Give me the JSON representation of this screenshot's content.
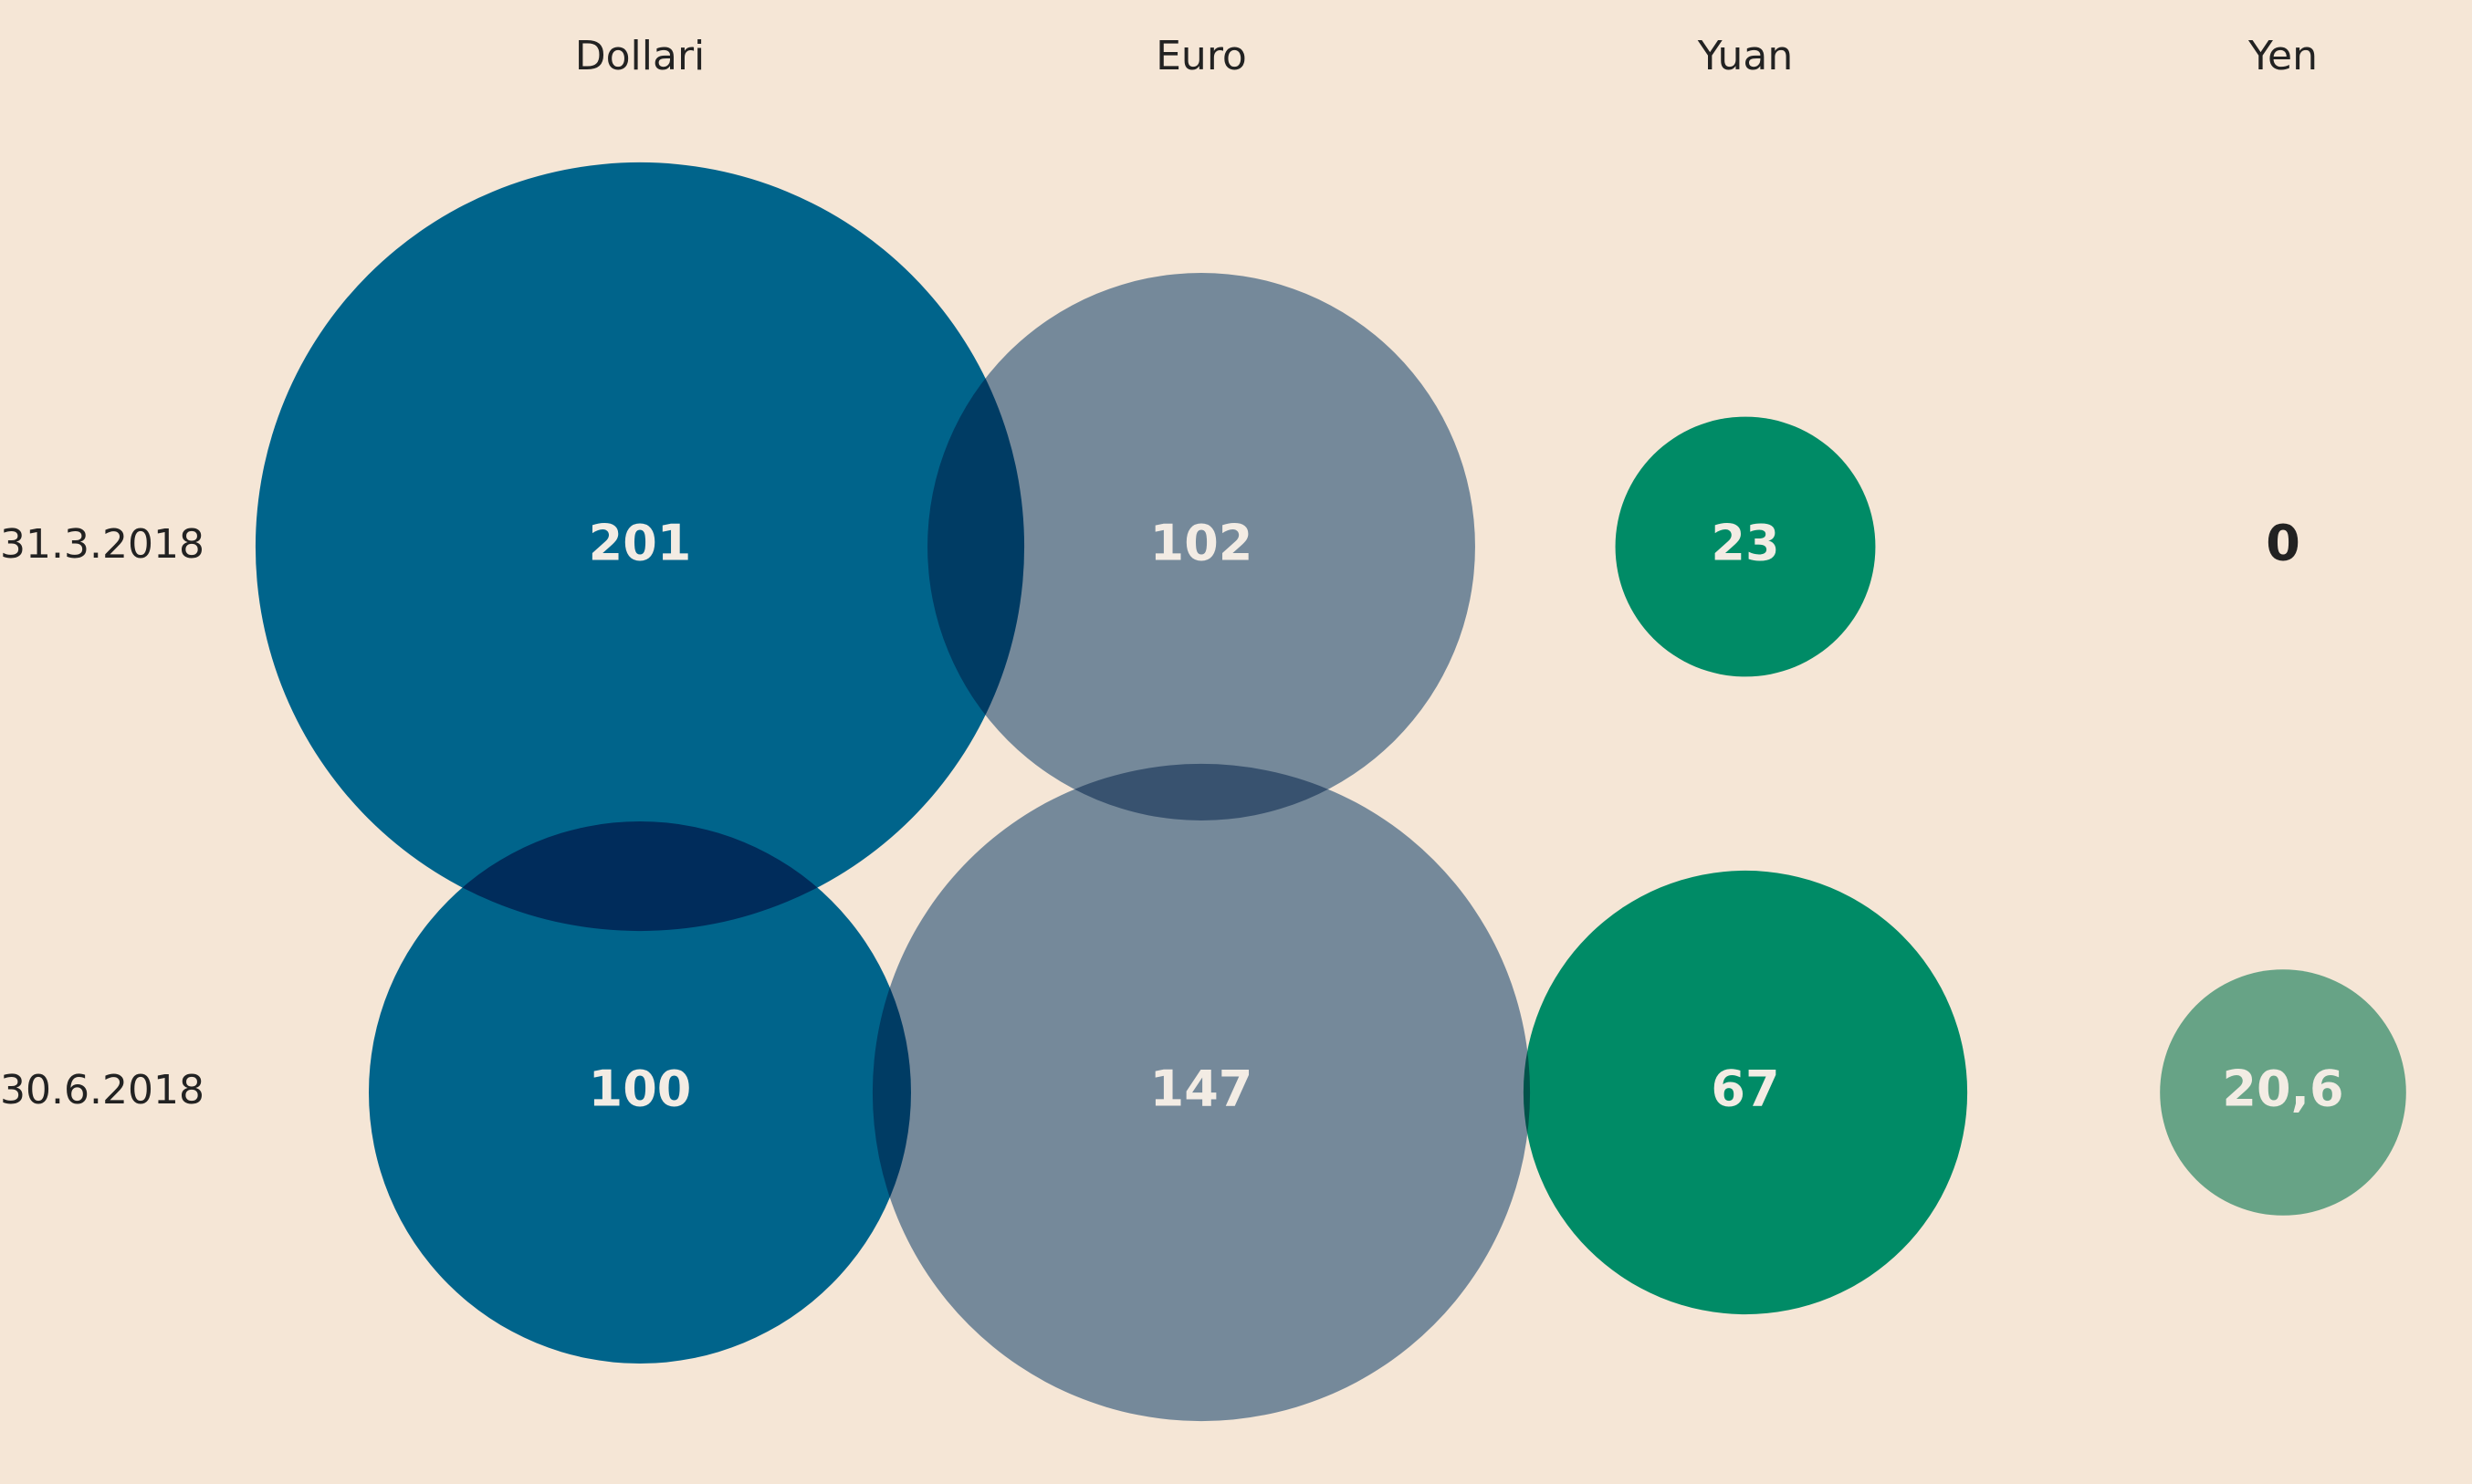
{
  "chart_data": {
    "type": "bubble",
    "categories": [
      "Dollari",
      "Euro",
      "Yuan",
      "Yen"
    ],
    "colors": [
      "#006fa6",
      "#7a98b8",
      "#009a7a",
      "#6bb5a0"
    ],
    "series": [
      {
        "name": "31.3.2018",
        "values": [
          201,
          102,
          23,
          0
        ]
      },
      {
        "name": "30.6.2018",
        "values": [
          100,
          147,
          67,
          20.6
        ],
        "value_labels": [
          "100",
          "147",
          "67",
          "20,6"
        ]
      }
    ]
  }
}
